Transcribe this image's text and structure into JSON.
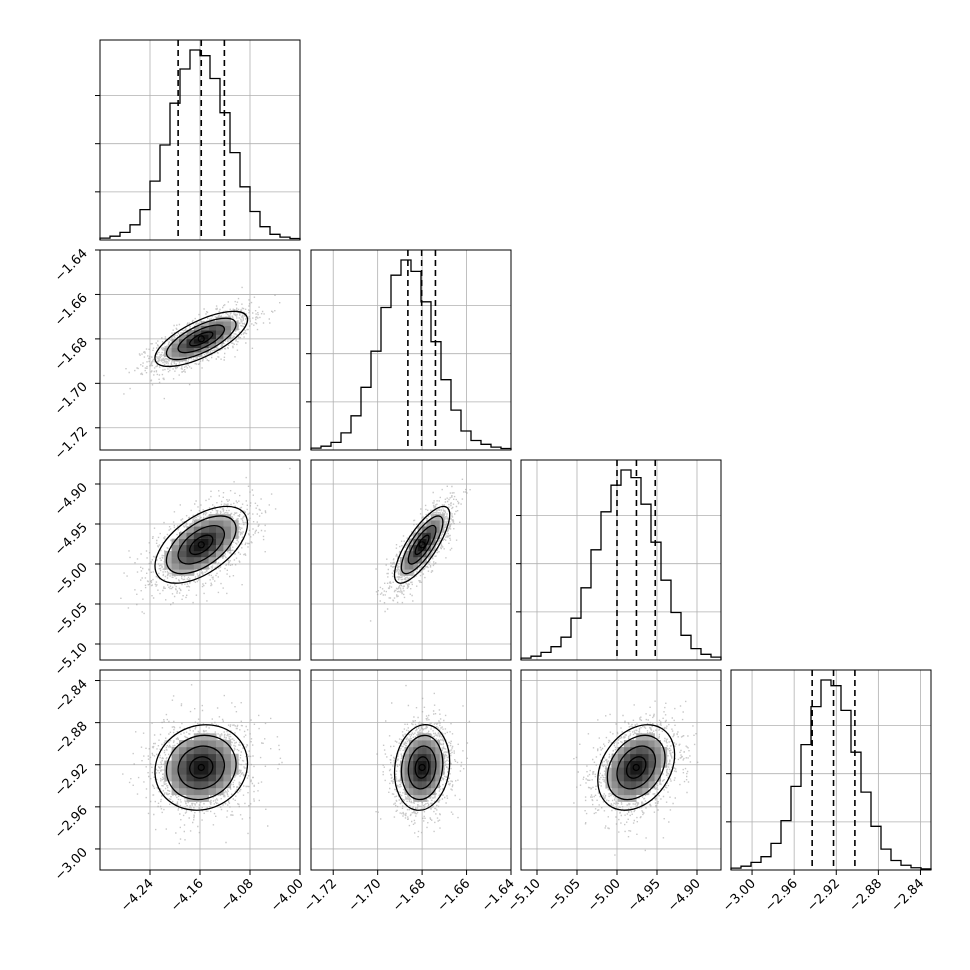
{
  "chart_data": {
    "type": "corner",
    "title": "",
    "grid": true,
    "parameters": [
      {
        "range": [
          -4.32,
          -4.0
        ],
        "ticks": [
          -4.24,
          -4.16,
          -4.08,
          -4.0
        ],
        "tick_labels": [
          "−4.24",
          "−4.16",
          "−4.08",
          "−4.00"
        ],
        "quantiles": [
          -4.195,
          -4.158,
          -4.121
        ],
        "mean": -4.158,
        "sigma": 0.037,
        "hist_counts": [
          0.01,
          0.02,
          0.04,
          0.08,
          0.16,
          0.31,
          0.5,
          0.72,
          0.9,
          1.0,
          0.97,
          0.85,
          0.67,
          0.46,
          0.28,
          0.15,
          0.07,
          0.03,
          0.015,
          0.008
        ]
      },
      {
        "range": [
          -1.73,
          -1.64
        ],
        "ticks": [
          -1.72,
          -1.7,
          -1.68,
          -1.66,
          -1.64
        ],
        "tick_labels": [
          "−1.72",
          "−1.70",
          "−1.68",
          "−1.66",
          "−1.64"
        ],
        "quantiles": [
          -1.6864,
          -1.6802,
          -1.674
        ],
        "mean": -1.68,
        "sigma": 0.0062,
        "hist_counts": [
          0.01,
          0.02,
          0.04,
          0.09,
          0.18,
          0.33,
          0.52,
          0.75,
          0.92,
          1.0,
          0.94,
          0.78,
          0.57,
          0.37,
          0.21,
          0.1,
          0.05,
          0.03,
          0.015,
          0.008
        ]
      },
      {
        "range": [
          -5.12,
          -4.87
        ],
        "ticks": [
          -5.1,
          -5.05,
          -5.0,
          -4.95,
          -4.9
        ],
        "tick_labels": [
          "−5.10",
          "−5.05",
          "−5.00",
          "−4.95",
          "−4.90"
        ],
        "quantiles": [
          -5.0,
          -4.9757,
          -4.9522
        ],
        "mean": -4.976,
        "sigma": 0.024,
        "hist_counts": [
          0.01,
          0.02,
          0.04,
          0.07,
          0.12,
          0.22,
          0.38,
          0.58,
          0.78,
          0.92,
          1.0,
          0.96,
          0.82,
          0.62,
          0.42,
          0.25,
          0.13,
          0.06,
          0.03,
          0.015
        ]
      },
      {
        "range": [
          -3.02,
          -2.83
        ],
        "ticks": [
          -3.0,
          -2.96,
          -2.92,
          -2.88,
          -2.84
        ],
        "tick_labels": [
          "−3.00",
          "−2.96",
          "−2.92",
          "−2.88",
          "−2.84"
        ],
        "quantiles": [
          -2.9429,
          -2.9226,
          -2.9023
        ],
        "mean": -2.9226,
        "sigma": 0.0203,
        "hist_counts": [
          0.01,
          0.02,
          0.04,
          0.07,
          0.14,
          0.26,
          0.44,
          0.66,
          0.86,
          1.0,
          0.97,
          0.84,
          0.62,
          0.41,
          0.23,
          0.11,
          0.05,
          0.025,
          0.012,
          0.006
        ]
      }
    ],
    "correlations": [
      [
        0,
        1,
        0.7
      ],
      [
        0,
        2,
        0.55
      ],
      [
        0,
        3,
        0.1
      ],
      [
        1,
        2,
        0.78
      ],
      [
        1,
        3,
        0.12
      ],
      [
        2,
        3,
        0.3
      ]
    ],
    "contour_sigmas": [
      0.5,
      1.0,
      1.5,
      2.0
    ],
    "colors": {
      "line": "#000000",
      "grid": "#b0b0b0",
      "dot": "#9a9a9a"
    }
  }
}
